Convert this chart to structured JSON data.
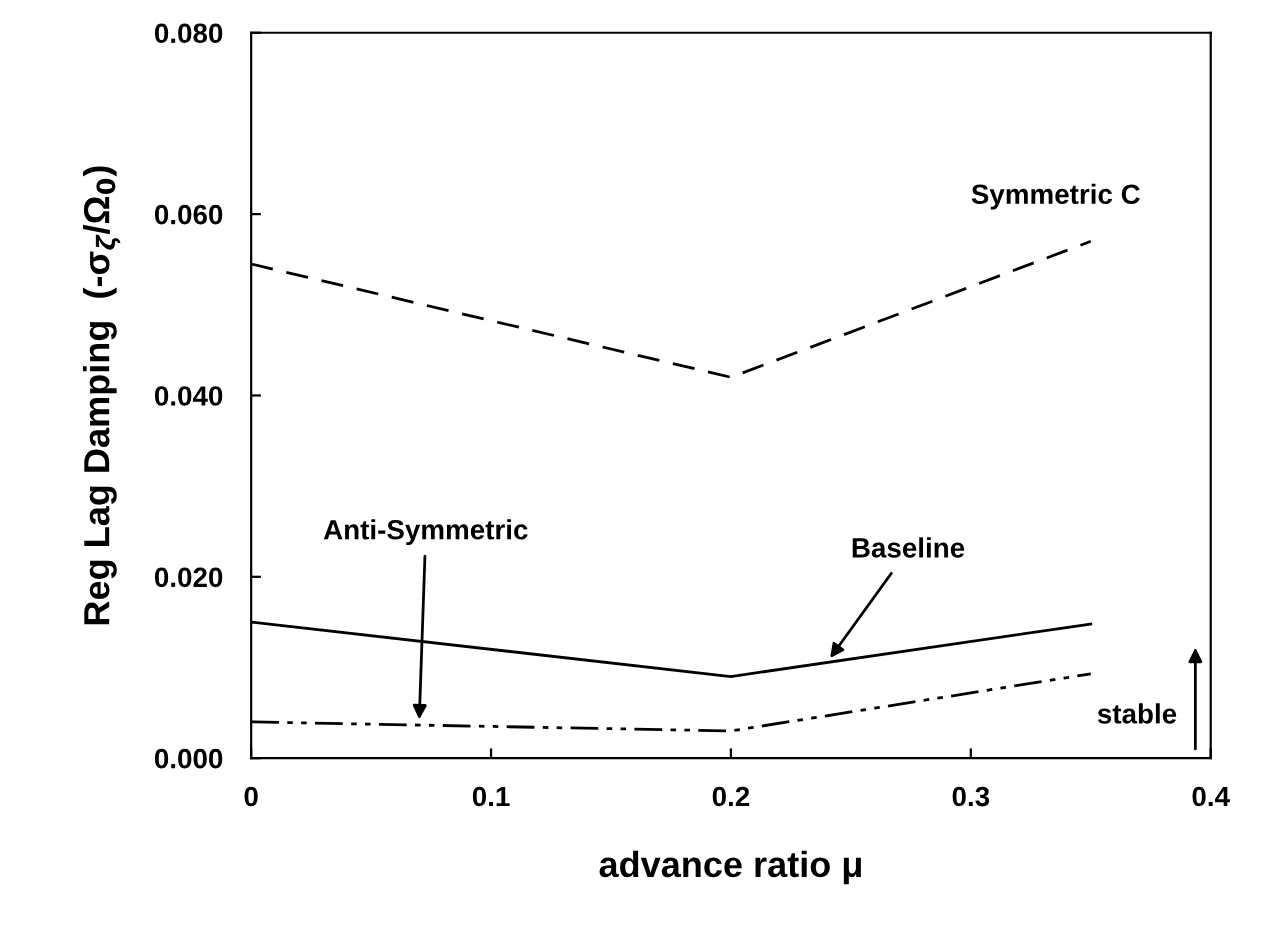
{
  "chart_data": {
    "type": "line",
    "xlabel": "advance ratio μ",
    "ylabel": "Reg Lag Damping  (-σ$_{ζ}$/Ω$_{0}$)",
    "x": [
      0,
      0.2,
      0.35
    ],
    "series": [
      {
        "name": "Symmetric C",
        "color": "#000000",
        "line_style": "dashed",
        "values": [
          0.0545,
          0.042,
          0.057
        ]
      },
      {
        "name": "Baseline",
        "color": "#000000",
        "line_style": "solid",
        "values": [
          0.015,
          0.009,
          0.0148
        ]
      },
      {
        "name": "Anti-Symmetric",
        "color": "#000000",
        "line_style": "dashdotdot",
        "values": [
          0.004,
          0.003,
          0.0093
        ]
      }
    ],
    "xlim": [
      0,
      0.4
    ],
    "xticks": [
      0,
      0.1,
      0.2,
      0.3,
      0.4
    ],
    "ylim": [
      0,
      0.08
    ],
    "yticks": [
      {
        "value": 0,
        "label": "0.000"
      },
      {
        "value": 0.02,
        "label": "0.020"
      },
      {
        "value": 0.04,
        "label": "0.040"
      },
      {
        "value": 0.06,
        "label": "0.060"
      },
      {
        "value": 0.08,
        "label": "0.080"
      }
    ],
    "annotations": [
      "stable"
    ],
    "grid": false,
    "legend": false,
    "marker": "none"
  }
}
